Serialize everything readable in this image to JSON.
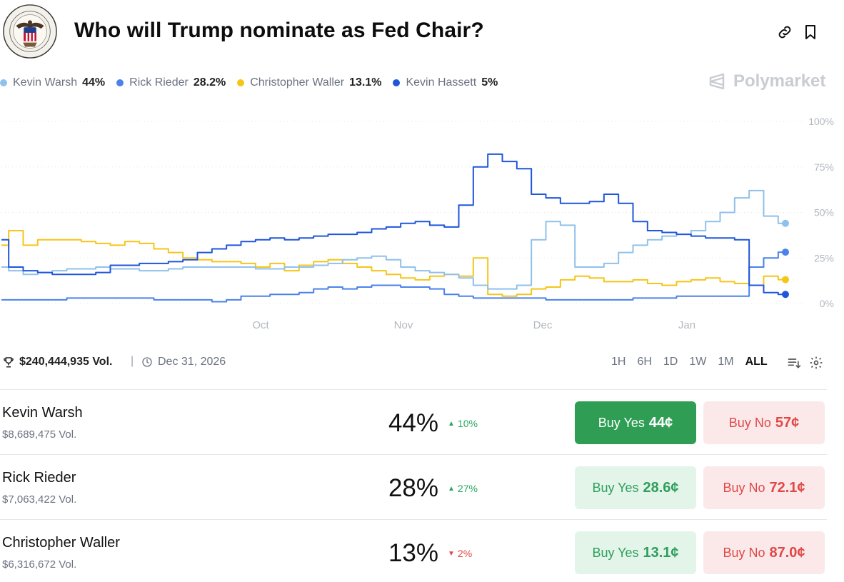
{
  "header": {
    "title": "Who will Trump nominate as Fed Chair?"
  },
  "colors": {
    "warsh": "#8fc1ec",
    "rieder": "#4a82ea",
    "waller": "#f5c518",
    "hassett": "#1f56dc",
    "accent_green": "#2f9e54",
    "accent_red": "#e04848"
  },
  "legend": [
    {
      "name": "Kevin Warsh",
      "pct": "44%"
    },
    {
      "name": "Rick Rieder",
      "pct": "28.2%"
    },
    {
      "name": "Christopher Waller",
      "pct": "13.1%"
    },
    {
      "name": "Kevin Hassett",
      "pct": "5%"
    }
  ],
  "brand": {
    "name": "Polymarket"
  },
  "chart_data": {
    "type": "line",
    "x_ticks": [
      "Oct",
      "Nov",
      "Dec",
      "Jan"
    ],
    "y_ticks": [
      "100%",
      "75%",
      "50%",
      "25%",
      "0%"
    ],
    "ylim": [
      0,
      100
    ],
    "grid": true,
    "series": [
      {
        "name": "Kevin Warsh",
        "values": [
          20,
          18,
          16,
          17,
          18,
          19,
          19,
          20,
          19,
          19,
          18,
          18,
          19,
          20,
          20,
          20,
          20,
          20,
          19,
          19,
          20,
          20,
          21,
          22,
          24,
          25,
          26,
          24,
          20,
          18,
          17,
          16,
          14,
          10,
          8,
          8,
          10,
          35,
          45,
          43,
          20,
          20,
          22,
          28,
          32,
          35,
          37,
          38,
          40,
          45,
          50,
          58,
          62,
          48,
          44
        ]
      },
      {
        "name": "Rick Rieder",
        "values": [
          2,
          2,
          2,
          2,
          2,
          3,
          3,
          3,
          3,
          3,
          3,
          2,
          2,
          2,
          2,
          1,
          2,
          4,
          4,
          5,
          5,
          6,
          8,
          9,
          8,
          9,
          10,
          10,
          9,
          9,
          8,
          5,
          4,
          3,
          3,
          3,
          3,
          3,
          2,
          2,
          2,
          2,
          2,
          2,
          3,
          3,
          3,
          4,
          4,
          4,
          4,
          4,
          20,
          25,
          28.2
        ]
      },
      {
        "name": "Christopher Waller",
        "values": [
          32,
          40,
          32,
          35,
          35,
          35,
          34,
          33,
          32,
          34,
          33,
          30,
          28,
          25,
          24,
          23,
          23,
          22,
          20,
          22,
          18,
          21,
          23,
          24,
          22,
          20,
          18,
          16,
          14,
          13,
          15,
          16,
          15,
          25,
          5,
          4,
          5,
          8,
          9,
          13,
          15,
          14,
          12,
          12,
          13,
          11,
          10,
          12,
          13,
          14,
          12,
          11,
          10,
          15,
          13.1
        ]
      },
      {
        "name": "Kevin Hassett",
        "values": [
          35,
          20,
          18,
          17,
          16,
          16,
          16,
          17,
          21,
          21,
          22,
          22,
          23,
          24,
          28,
          30,
          32,
          34,
          35,
          36,
          35,
          36,
          37,
          38,
          38,
          39,
          41,
          42,
          44,
          45,
          43,
          42,
          54,
          75,
          82,
          78,
          74,
          60,
          58,
          55,
          55,
          56,
          60,
          55,
          45,
          40,
          39,
          38,
          37,
          36,
          36,
          35,
          10,
          6,
          5
        ]
      }
    ]
  },
  "stats": {
    "total_volume": "$240,444,935 Vol.",
    "end_date": "Dec 31, 2026",
    "ranges": [
      "1H",
      "6H",
      "1D",
      "1W",
      "1M",
      "ALL"
    ],
    "active_range": "ALL"
  },
  "outcomes": [
    {
      "name": "Kevin Warsh",
      "volume": "$8,689,475 Vol.",
      "pct": "44%",
      "change": "10%",
      "direction": "up",
      "yes_label": "Buy Yes",
      "yes_price": "44¢",
      "no_label": "Buy No",
      "no_price": "57¢"
    },
    {
      "name": "Rick Rieder",
      "volume": "$7,063,422 Vol.",
      "pct": "28%",
      "change": "27%",
      "direction": "up",
      "yes_label": "Buy Yes",
      "yes_price": "28.6¢",
      "no_label": "Buy No",
      "no_price": "72.1¢"
    },
    {
      "name": "Christopher Waller",
      "volume": "$6,316,672 Vol.",
      "pct": "13%",
      "change": "2%",
      "direction": "down",
      "yes_label": "Buy Yes",
      "yes_price": "13.1¢",
      "no_label": "Buy No",
      "no_price": "87.0¢"
    }
  ]
}
